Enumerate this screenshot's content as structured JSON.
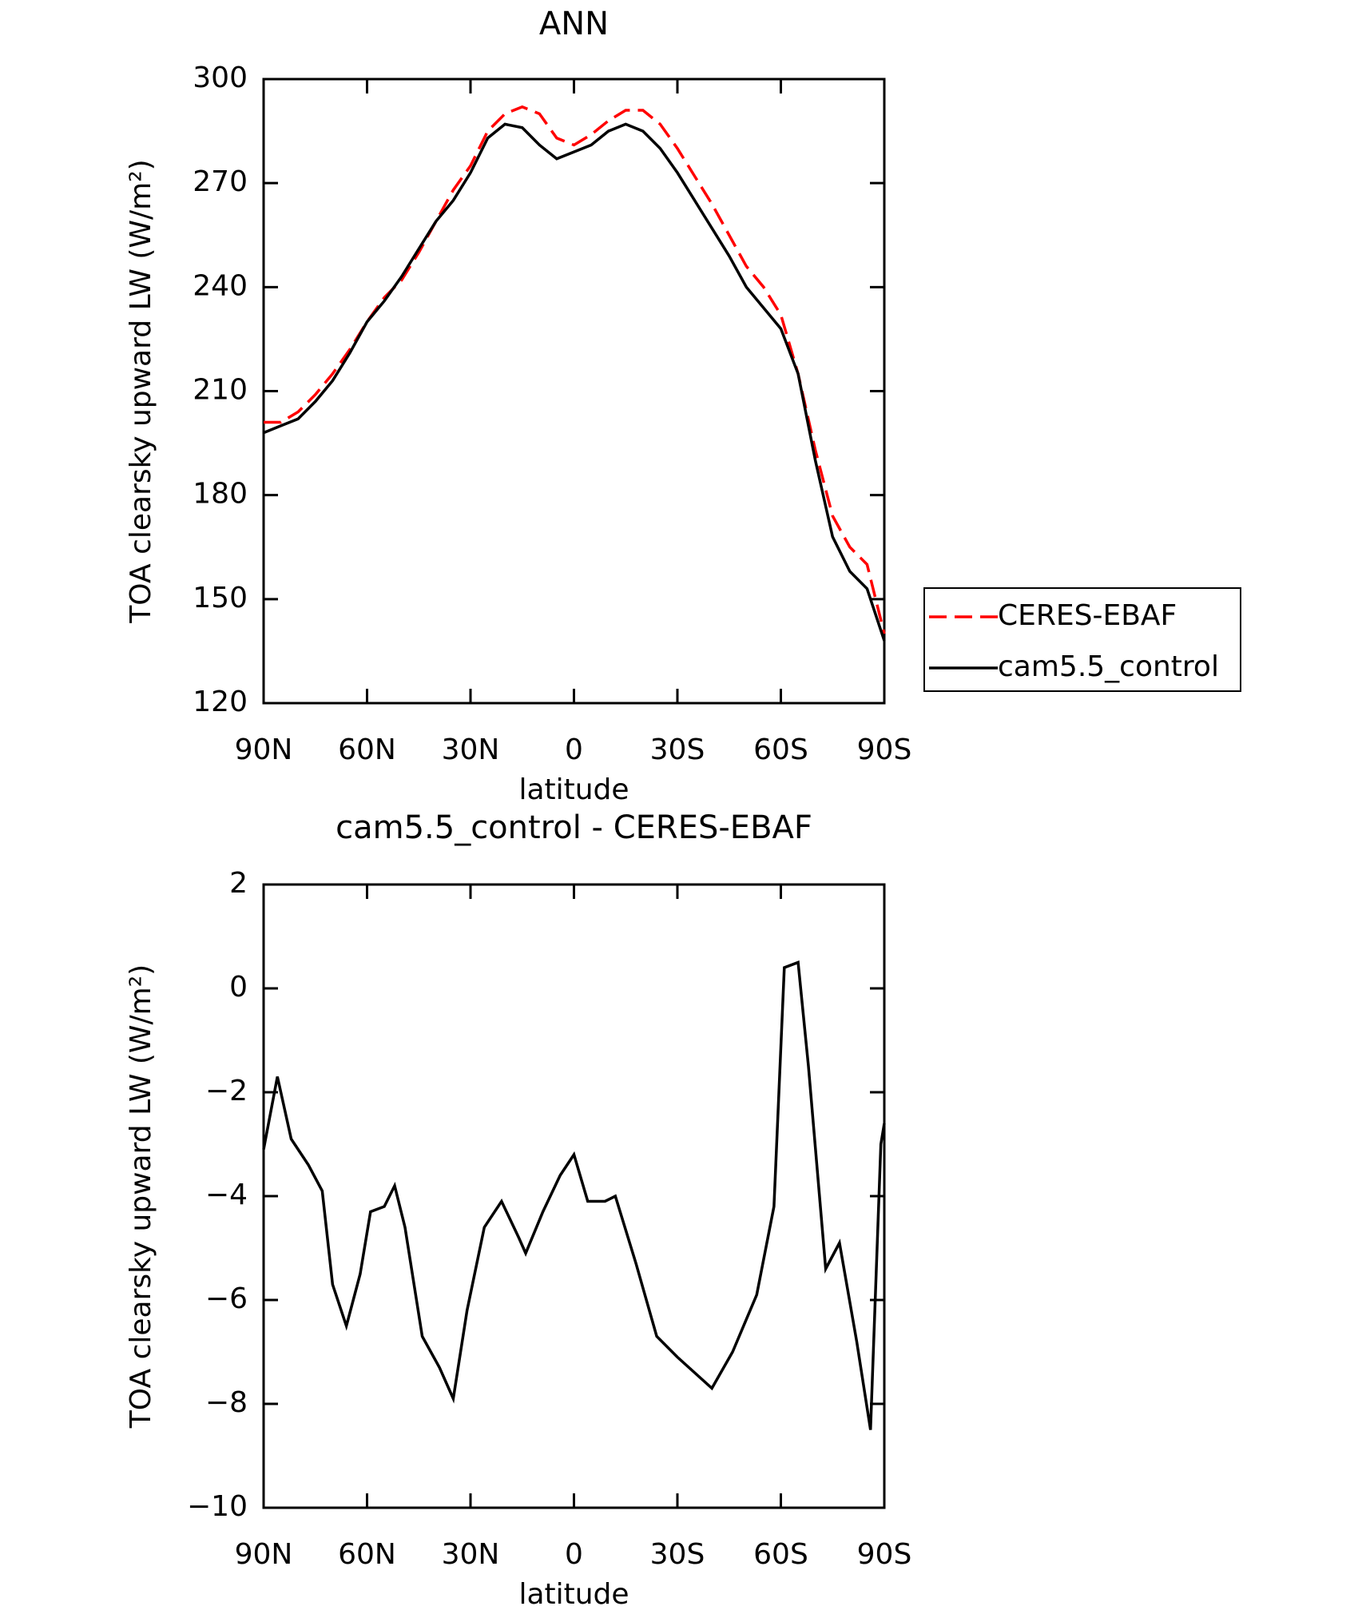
{
  "chart_data": [
    {
      "type": "line",
      "title": "ANN",
      "xlabel": "latitude",
      "ylabel": "TOA clearsky upward LW (W/m²)",
      "xlim": [
        90,
        -90
      ],
      "ylim": [
        120,
        300
      ],
      "xticks": [
        {
          "value": 90,
          "label": "90N"
        },
        {
          "value": 60,
          "label": "60N"
        },
        {
          "value": 30,
          "label": "30N"
        },
        0,
        {
          "value": -30,
          "label": "30S"
        },
        {
          "value": -60,
          "label": "60S"
        },
        {
          "value": -90,
          "label": "90S"
        }
      ],
      "yticks": [
        120,
        150,
        180,
        210,
        240,
        270,
        300
      ],
      "legend": "right",
      "series": [
        {
          "name": "CERES-EBAF",
          "color": "#ff0000",
          "dash": true,
          "x": [
            90,
            85,
            80,
            75,
            70,
            65,
            60,
            55,
            50,
            45,
            40,
            35,
            30,
            25,
            20,
            15,
            10,
            5,
            0,
            -5,
            -10,
            -15,
            -20,
            -25,
            -30,
            -35,
            -40,
            -45,
            -50,
            -55,
            -60,
            -65,
            -70,
            -75,
            -80,
            -85,
            -90
          ],
          "values": [
            201,
            201,
            204,
            209,
            215,
            222,
            230,
            237,
            242,
            250,
            259,
            268,
            275,
            285,
            290,
            292,
            290,
            283,
            281,
            284,
            288,
            291,
            291,
            287,
            280,
            272,
            264,
            255,
            246,
            240,
            232,
            215,
            193,
            174,
            165,
            160,
            140
          ]
        },
        {
          "name": "cam5.5_control",
          "color": "#000000",
          "dash": false,
          "x": [
            90,
            85,
            80,
            75,
            70,
            65,
            60,
            55,
            50,
            45,
            40,
            35,
            30,
            25,
            20,
            15,
            10,
            5,
            0,
            -5,
            -10,
            -15,
            -20,
            -25,
            -30,
            -35,
            -40,
            -45,
            -50,
            -55,
            -60,
            -65,
            -70,
            -75,
            -80,
            -85,
            -90
          ],
          "values": [
            198,
            200,
            202,
            207,
            213,
            221,
            230,
            236,
            243,
            251,
            259,
            265,
            273,
            283,
            287,
            286,
            281,
            277,
            279,
            281,
            285,
            287,
            285,
            280,
            273,
            265,
            257,
            249,
            240,
            234,
            228,
            215,
            190,
            168,
            158,
            153,
            138
          ]
        }
      ]
    },
    {
      "type": "line",
      "title": "cam5.5_control - CERES-EBAF",
      "xlabel": "latitude",
      "ylabel": "TOA clearsky upward LW (W/m²)",
      "xlim": [
        90,
        -90
      ],
      "ylim": [
        -10,
        2
      ],
      "xticks": [
        {
          "value": 90,
          "label": "90N"
        },
        {
          "value": 60,
          "label": "60N"
        },
        {
          "value": 30,
          "label": "30N"
        },
        0,
        {
          "value": -30,
          "label": "30S"
        },
        {
          "value": -60,
          "label": "60S"
        },
        {
          "value": -90,
          "label": "90S"
        }
      ],
      "yticks": [
        {
          "value": -10,
          "label": "−10"
        },
        {
          "value": -8,
          "label": "−8"
        },
        {
          "value": -6,
          "label": "−6"
        },
        {
          "value": -4,
          "label": "−4"
        },
        {
          "value": -2,
          "label": "−2"
        },
        0,
        2
      ],
      "series": [
        {
          "color": "#000000",
          "dash": false,
          "x": [
            90,
            86,
            82,
            77,
            73,
            70,
            66,
            62,
            59,
            55,
            52,
            49,
            44,
            39,
            35,
            31,
            26,
            21,
            16,
            14,
            9,
            4,
            0,
            -4,
            -9,
            -12,
            -18,
            -24,
            -30,
            -40,
            -46,
            -53,
            -58,
            -61,
            -65,
            -68,
            -73,
            -77,
            -82,
            -86,
            -89,
            -90
          ],
          "values": [
            -3.1,
            -1.7,
            -2.9,
            -3.4,
            -3.9,
            -5.7,
            -6.5,
            -5.5,
            -4.3,
            -4.2,
            -3.8,
            -4.6,
            -6.7,
            -7.3,
            -7.9,
            -6.2,
            -4.6,
            -4.1,
            -4.8,
            -5.1,
            -4.3,
            -3.6,
            -3.2,
            -4.1,
            -4.1,
            -4.0,
            -5.3,
            -6.7,
            -7.1,
            -7.7,
            -7.0,
            -5.9,
            -4.2,
            0.4,
            0.5,
            -1.5,
            -5.4,
            -4.9,
            -6.8,
            -8.5,
            -3.0,
            -2.6
          ]
        }
      ]
    }
  ]
}
